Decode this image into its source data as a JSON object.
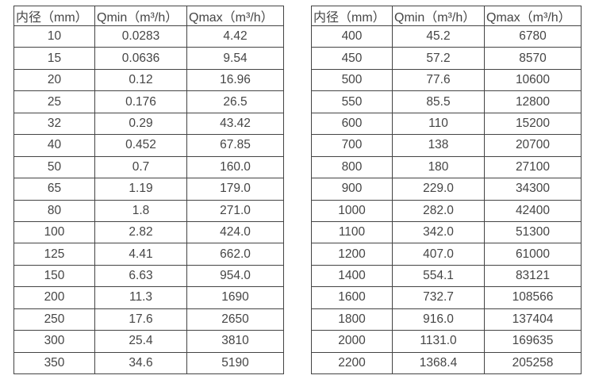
{
  "page": {
    "background_color": "#ffffff",
    "text_color": "#454545",
    "border_color": "#444444"
  },
  "chart_data": [
    {
      "type": "table",
      "name": "flow-range-table-small-diameters",
      "columns": [
        "内径（mm）",
        "Qmin（m³/h）",
        "Qmax（m³/h）"
      ],
      "rows": [
        [
          "10",
          "0.0283",
          "4.42"
        ],
        [
          "15",
          "0.0636",
          "9.54"
        ],
        [
          "20",
          "0.12",
          "16.96"
        ],
        [
          "25",
          "0.176",
          "26.5"
        ],
        [
          "32",
          "0.29",
          "43.42"
        ],
        [
          "40",
          "0.452",
          "67.85"
        ],
        [
          "50",
          "0.7",
          "160.0"
        ],
        [
          "65",
          "1.19",
          "179.0"
        ],
        [
          "80",
          "1.8",
          "271.0"
        ],
        [
          "100",
          "2.82",
          "424.0"
        ],
        [
          "125",
          "4.41",
          "662.0"
        ],
        [
          "150",
          "6.63",
          "954.0"
        ],
        [
          "200",
          "11.3",
          "1690"
        ],
        [
          "250",
          "17.6",
          "2650"
        ],
        [
          "300",
          "25.4",
          "3810"
        ],
        [
          "350",
          "34.6",
          "5190"
        ]
      ]
    },
    {
      "type": "table",
      "name": "flow-range-table-large-diameters",
      "columns": [
        "内径（mm）",
        "Qmin（m³/h）",
        "Qmax（m³/h）"
      ],
      "rows": [
        [
          "400",
          "45.2",
          "6780"
        ],
        [
          "450",
          "57.2",
          "8570"
        ],
        [
          "500",
          "77.6",
          "10600"
        ],
        [
          "550",
          "85.5",
          "12800"
        ],
        [
          "600",
          "110",
          "15200"
        ],
        [
          "700",
          "138",
          "20700"
        ],
        [
          "800",
          "180",
          "27100"
        ],
        [
          "900",
          "229.0",
          "34300"
        ],
        [
          "1000",
          "282.0",
          "42400"
        ],
        [
          "1100",
          "342.0",
          "51300"
        ],
        [
          "1200",
          "407.0",
          "61000"
        ],
        [
          "1400",
          "554.1",
          "83121"
        ],
        [
          "1600",
          "732.7",
          "108566"
        ],
        [
          "1800",
          "916.0",
          "137404"
        ],
        [
          "2000",
          "1131.0",
          "169635"
        ],
        [
          "2200",
          "1368.4",
          "205258"
        ]
      ]
    }
  ]
}
